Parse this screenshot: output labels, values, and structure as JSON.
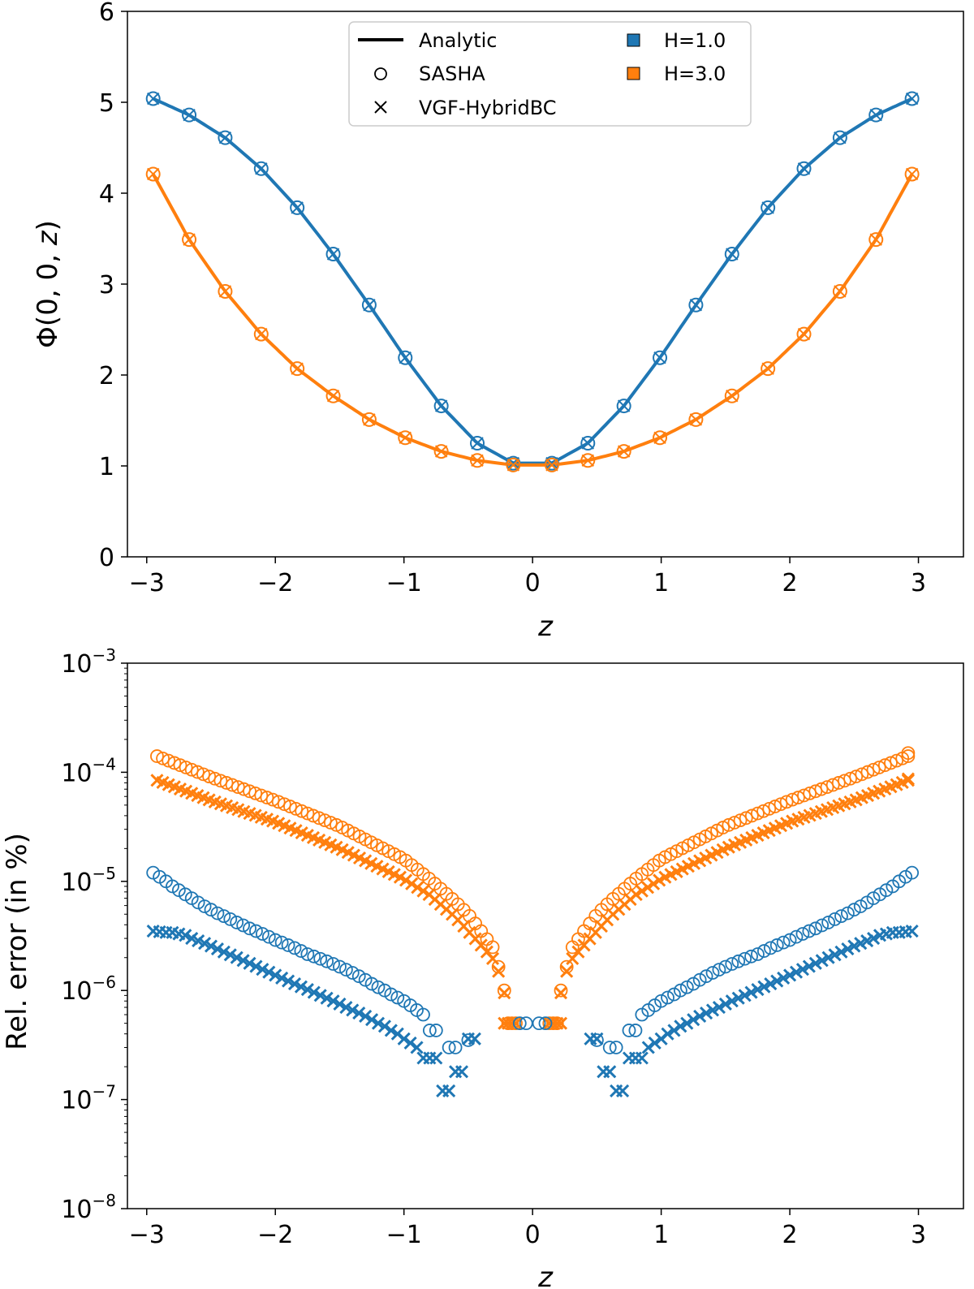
{
  "chart_data": [
    {
      "type": "line",
      "title": "",
      "xlabel": "z",
      "ylabel_main": "Φ(0, 0, ",
      "ylabel_var": "z",
      "ylabel_close": ")",
      "xlim": [
        -3.15,
        3.35
      ],
      "ylim": [
        0,
        6
      ],
      "xticks": [
        -3,
        -2,
        -1,
        0,
        1,
        2,
        3
      ],
      "xtick_labels": [
        "−3",
        "−2",
        "−1",
        "0",
        "1",
        "2",
        "3"
      ],
      "yticks": [
        0,
        1,
        2,
        3,
        4,
        5,
        6
      ],
      "ytick_labels": [
        "0",
        "1",
        "2",
        "3",
        "4",
        "5",
        "6"
      ],
      "grid": false,
      "legend_position": "top-center",
      "legend": {
        "methods": [
          "Analytic",
          "SASHA",
          "VGF-HybridBC"
        ],
        "heights": [
          "H=1.0",
          "H=3.0"
        ]
      },
      "colors": {
        "H=1.0": "#1f77b4",
        "H=3.0": "#ff7f0e"
      },
      "sample_z": [
        -2.95,
        -2.67,
        -2.39,
        -2.11,
        -1.83,
        -1.55,
        -1.27,
        -0.99,
        -0.71,
        -0.43,
        -0.15,
        0.15,
        0.43,
        0.71,
        0.99,
        1.27,
        1.55,
        1.83,
        2.11,
        2.39,
        2.67,
        2.95
      ],
      "series": [
        {
          "name": "H=1.0",
          "values": [
            5.04,
            4.86,
            4.61,
            4.27,
            3.84,
            3.33,
            2.77,
            2.19,
            1.66,
            1.25,
            1.03,
            1.03,
            1.25,
            1.66,
            2.19,
            2.77,
            3.33,
            3.84,
            4.27,
            4.61,
            4.86,
            5.04
          ]
        },
        {
          "name": "H=3.0",
          "values": [
            4.21,
            3.49,
            2.92,
            2.45,
            2.07,
            1.77,
            1.51,
            1.31,
            1.16,
            1.06,
            1.01,
            1.01,
            1.06,
            1.16,
            1.31,
            1.51,
            1.77,
            2.07,
            2.45,
            2.92,
            3.49,
            4.21
          ]
        }
      ]
    },
    {
      "type": "scatter",
      "title": "",
      "xlabel": "z",
      "ylabel": "Rel. error (in %)",
      "yscale": "log",
      "xlim": [
        -3.15,
        3.35
      ],
      "ylim": [
        1e-08,
        0.001
      ],
      "xticks": [
        -3,
        -2,
        -1,
        0,
        1,
        2,
        3
      ],
      "xtick_labels": [
        "−3",
        "−2",
        "−1",
        "0",
        "1",
        "2",
        "3"
      ],
      "ytick_exponents": [
        -8,
        -7,
        -6,
        -5,
        -4,
        -3
      ],
      "ytick_base": "10",
      "ytick_exponent_labels": [
        "−8",
        "−7",
        "−6",
        "−5",
        "−4",
        "−3"
      ],
      "grid": false,
      "series": [
        {
          "name": "SASHA H=3.0",
          "marker": "circle",
          "color": "#ff7f0e",
          "anchors_absz": [
            0.22,
            0.25,
            0.3,
            0.4,
            0.5,
            0.6,
            0.8,
            1.0,
            1.5,
            2.0,
            2.5,
            2.95
          ],
          "anchors_value": [
            1e-06,
            1.4e-06,
            2.4e-06,
            3.5e-06,
            5e-06,
            6.5e-06,
            1.05e-05,
            1.6e-05,
            3.2e-05,
            5.5e-05,
            9e-05,
            0.000145
          ],
          "flat_value": 5e-07,
          "flat_absz": [
            0.13,
            0.16,
            0.19
          ],
          "right_extra": 0.00015
        },
        {
          "name": "VGF-HybridBC H=3.0",
          "marker": "x",
          "color": "#ff7f0e",
          "anchors_absz": [
            0.22,
            0.25,
            0.3,
            0.4,
            0.5,
            0.6,
            0.8,
            1.0,
            1.5,
            2.0,
            2.5,
            2.95
          ],
          "anchors_value": [
            9.5e-07,
            1.35e-06,
            1.9e-06,
            2.6e-06,
            3.5e-06,
            4.7e-06,
            7.5e-06,
            1.05e-05,
            2e-05,
            3.5e-05,
            5.5e-05,
            8.7e-05
          ],
          "flat_value": 5e-07,
          "flat_absz": [
            0.13,
            0.16,
            0.19,
            0.22
          ],
          "right_extra": 8.7e-05
        },
        {
          "name": "SASHA H=1.0",
          "marker": "circle",
          "color": "#1f77b4",
          "points_absz": [
            0.5,
            0.6,
            0.65,
            0.75,
            0.8,
            0.85,
            0.9,
            0.95,
            1.0,
            1.05,
            1.1,
            1.15,
            1.2,
            1.25,
            1.3,
            1.35,
            1.4,
            1.45,
            1.5,
            1.55,
            1.6,
            1.65,
            1.7,
            1.75,
            1.8,
            1.85,
            1.9,
            1.95,
            2.0,
            2.05,
            2.1,
            2.15,
            2.2,
            2.25,
            2.3,
            2.35,
            2.4,
            2.45,
            2.5,
            2.55,
            2.6,
            2.65,
            2.7,
            2.75,
            2.8,
            2.85,
            2.9,
            2.95
          ],
          "points_value": [
            3.5e-07,
            3e-07,
            3e-07,
            4.3e-07,
            4.3e-07,
            6e-07,
            6.6e-07,
            7.3e-07,
            8e-07,
            8.6e-07,
            9.2e-07,
            1e-06,
            1.07e-06,
            1.15e-06,
            1.25e-06,
            1.35e-06,
            1.45e-06,
            1.55e-06,
            1.65e-06,
            1.75e-06,
            1.85e-06,
            1.95e-06,
            2.05e-06,
            2.15e-06,
            2.3e-06,
            2.45e-06,
            2.6e-06,
            2.75e-06,
            2.9e-06,
            3.1e-06,
            3.3e-06,
            3.5e-06,
            3.7e-06,
            3.95e-06,
            4.2e-06,
            4.5e-06,
            4.8e-06,
            5.1e-06,
            5.5e-06,
            5.9e-06,
            6.4e-06,
            7e-06,
            7.6e-06,
            8.3e-06,
            9e-06,
            1e-05,
            1.1e-05,
            1.2e-05
          ],
          "flat_value": 5e-07,
          "flat_absz": [
            0.05,
            0.1
          ]
        },
        {
          "name": "VGF-HybridBC H=1.0",
          "marker": "x",
          "color": "#1f77b4",
          "points_absz": [
            0.45,
            0.5,
            0.55,
            0.6,
            0.65,
            0.7,
            0.75,
            0.8,
            0.85,
            0.9,
            0.95,
            1.0,
            1.05,
            1.1,
            1.15,
            1.2,
            1.25,
            1.3,
            1.35,
            1.4,
            1.45,
            1.5,
            1.55,
            1.6,
            1.65,
            1.7,
            1.75,
            1.8,
            1.85,
            1.9,
            1.95,
            2.0,
            2.05,
            2.1,
            2.15,
            2.2,
            2.25,
            2.3,
            2.35,
            2.4,
            2.45,
            2.5,
            2.55,
            2.6,
            2.65,
            2.7,
            2.75,
            2.8,
            2.85,
            2.9,
            2.95
          ],
          "points_value": [
            3.6e-07,
            3.6e-07,
            1.8e-07,
            1.8e-07,
            1.2e-07,
            1.2e-07,
            2.4e-07,
            2.4e-07,
            2.4e-07,
            3e-07,
            3.3e-07,
            3.6e-07,
            4e-07,
            4.3e-07,
            4.7e-07,
            5e-07,
            5.4e-07,
            5.8e-07,
            6.2e-07,
            6.6e-07,
            7e-07,
            7.5e-07,
            8e-07,
            8.5e-07,
            9e-07,
            9.6e-07,
            1.02e-06,
            1.08e-06,
            1.15e-06,
            1.22e-06,
            1.3e-06,
            1.38e-06,
            1.47e-06,
            1.56e-06,
            1.66e-06,
            1.77e-06,
            1.88e-06,
            2e-06,
            2.12e-06,
            2.25e-06,
            2.4e-06,
            2.55e-06,
            2.7e-06,
            2.85e-06,
            3e-06,
            3.2e-06,
            3.3e-06,
            3.4e-06,
            3.4e-06,
            3.45e-06,
            3.5e-06
          ],
          "flat_value": 5e-07,
          "flat_absz": []
        }
      ]
    }
  ]
}
